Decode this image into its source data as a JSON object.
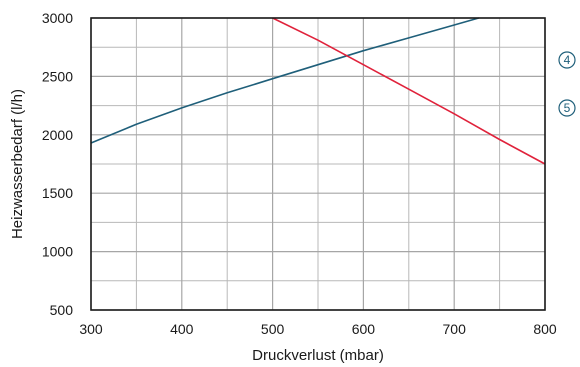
{
  "chart_data": {
    "type": "line",
    "xlabel": "Druckverlust (mbar)",
    "ylabel": "Heizwasserbedarf (l/h)",
    "xlim": [
      300,
      800
    ],
    "ylim": [
      500,
      3000
    ],
    "x_ticks": [
      300,
      400,
      500,
      600,
      700,
      800
    ],
    "y_ticks": [
      500,
      1000,
      1500,
      2000,
      2500,
      3000
    ],
    "grid": true,
    "series": [
      {
        "color": "#1f5f7a",
        "marker": "4",
        "x": [
          300,
          350,
          400,
          450,
          500,
          550,
          600,
          650,
          700,
          727
        ],
        "y": [
          1930,
          2090,
          2230,
          2360,
          2480,
          2600,
          2720,
          2830,
          2940,
          3000
        ]
      },
      {
        "color": "#e0223b",
        "marker": "5",
        "x": [
          500,
          550,
          600,
          650,
          700,
          750,
          800
        ],
        "y": [
          3000,
          2810,
          2600,
          2390,
          2180,
          1960,
          1750
        ]
      }
    ],
    "markers": [
      {
        "label": "4",
        "color": "#1f5f7a"
      },
      {
        "label": "5",
        "color": "#1f5f7a"
      }
    ]
  }
}
